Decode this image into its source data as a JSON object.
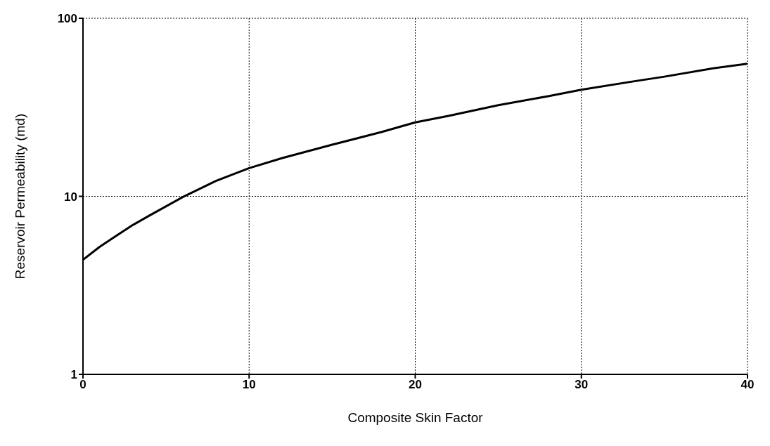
{
  "chart_data": {
    "type": "line",
    "xlabel": "Composite Skin Factor",
    "ylabel": "Reservoir Permeability   (md)",
    "x": [
      0,
      1,
      2,
      3,
      4,
      6,
      8,
      10,
      12,
      15,
      18,
      20,
      22,
      25,
      28,
      30,
      33,
      35,
      38,
      40
    ],
    "series": [
      {
        "color": "#000000",
        "values": [
          4.4,
          5.2,
          6.0,
          6.9,
          7.8,
          9.9,
          12.2,
          14.4,
          16.4,
          19.5,
          23.0,
          26.0,
          28.3,
          32.5,
          36.5,
          39.7,
          44.0,
          47.0,
          52.5,
          55.5
        ]
      }
    ],
    "xlim": [
      0,
      40
    ],
    "xticks": [
      0,
      10,
      20,
      30,
      40
    ],
    "ylim": [
      1,
      100
    ],
    "yticks": [
      1,
      10,
      100
    ],
    "log": "y",
    "grid": true,
    "marker": "none",
    "line_style": "solid"
  }
}
